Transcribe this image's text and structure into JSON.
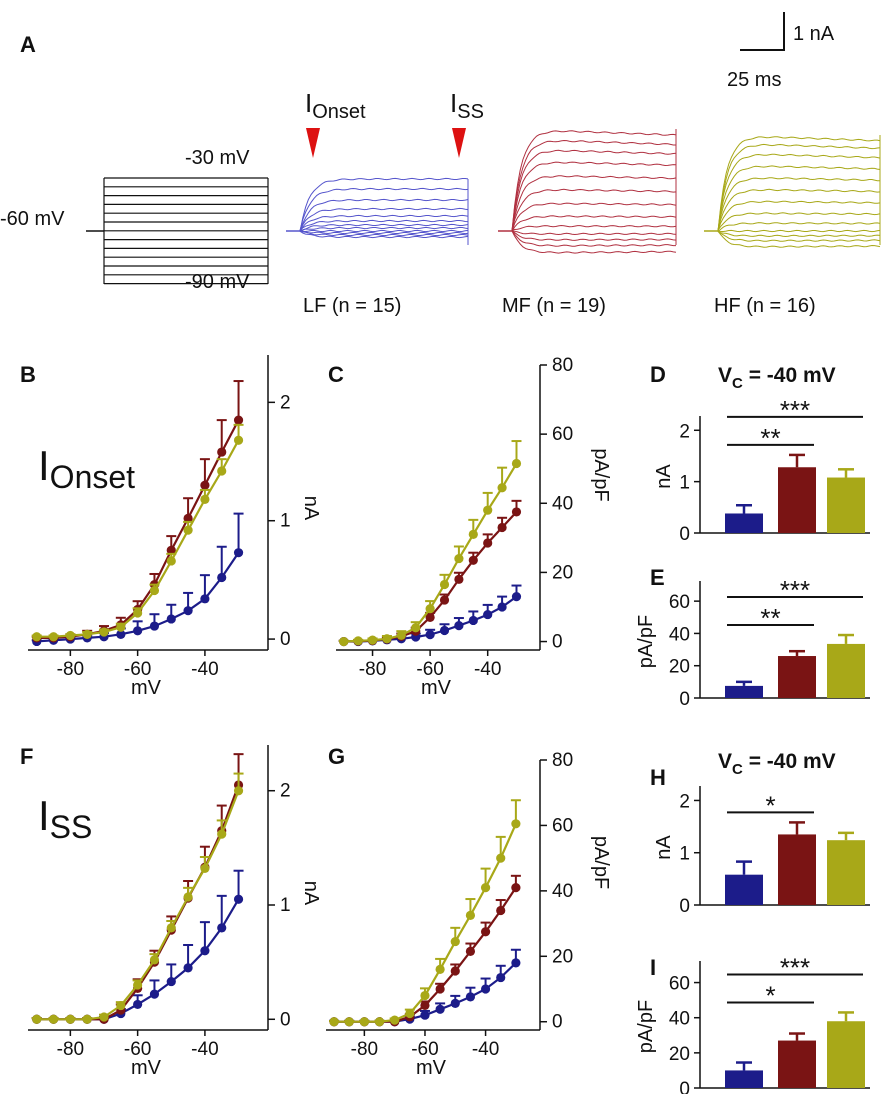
{
  "colors": {
    "LF": "#1c1c8a",
    "MF": "#7a1414",
    "HF": "#a8a818",
    "LF_trace": "#5555cc",
    "MF_trace": "#b03040",
    "arrow": "#dd1111",
    "black": "#111111"
  },
  "panelA": {
    "label": "A",
    "scalebar_current": "1 nA",
    "scalebar_time": "25 ms",
    "volt_hold": "-60 mV",
    "volt_top": "-30 mV",
    "volt_bottom": "-90 mV",
    "onset_base": "I",
    "onset_sub": "Onset",
    "ss_base": "I",
    "ss_sub": "SS",
    "groups": [
      "LF (n = 15)",
      "MF (n = 19)",
      "HF (n = 16)"
    ]
  },
  "text": {
    "B": "B",
    "C": "C",
    "D": "D",
    "E": "E",
    "F": "F",
    "G": "G",
    "H": "H",
    "I": "I",
    "Ionset_base": "I",
    "Ionset_sub": "Onset",
    "Iss_base": "I",
    "Iss_sub": "SS",
    "vc_base": "V",
    "vc_sub": "C",
    "vc_value": " = -40 mV",
    "xlabel": "mV",
    "ylabel_nA": "nA",
    "ylabel_pApF": "pA/pF"
  },
  "chart_data": [
    {
      "panel": "B",
      "type": "line",
      "title": "IOnset",
      "xlabel": "mV",
      "ylabel": "nA",
      "xlim": [
        -92,
        -26
      ],
      "ylim": [
        -0.05,
        2.4
      ],
      "x": [
        -90,
        -85,
        -80,
        -75,
        -70,
        -65,
        -60,
        -55,
        -50,
        -45,
        -40,
        -35,
        -30
      ],
      "xticks": [
        -80,
        -60,
        -40
      ],
      "yticks": [
        0,
        1,
        2
      ],
      "series": [
        {
          "name": "LF",
          "values": [
            -0.02,
            -0.01,
            0,
            0.01,
            0.02,
            0.04,
            0.07,
            0.11,
            0.17,
            0.24,
            0.34,
            0.52,
            0.73
          ],
          "err": [
            0.01,
            0.01,
            0.01,
            0.02,
            0.03,
            0.05,
            0.08,
            0.1,
            0.12,
            0.15,
            0.2,
            0.26,
            0.33
          ]
        },
        {
          "name": "MF",
          "values": [
            0.01,
            0.01,
            0.02,
            0.04,
            0.07,
            0.12,
            0.25,
            0.46,
            0.75,
            1.02,
            1.3,
            1.58,
            1.85
          ],
          "err": [
            0.01,
            0.01,
            0.02,
            0.03,
            0.04,
            0.06,
            0.07,
            0.09,
            0.12,
            0.17,
            0.22,
            0.27,
            0.33
          ]
        },
        {
          "name": "HF",
          "values": [
            0.02,
            0.02,
            0.03,
            0.04,
            0.06,
            0.1,
            0.22,
            0.41,
            0.66,
            0.92,
            1.18,
            1.42,
            1.68
          ],
          "err": [
            0.01,
            0.01,
            0.01,
            0.02,
            0.02,
            0.03,
            0.04,
            0.05,
            0.06,
            0.07,
            0.08,
            0.1,
            0.13
          ]
        }
      ]
    },
    {
      "panel": "C",
      "type": "line",
      "xlabel": "mV",
      "ylabel": "pA/pF",
      "xlim": [
        -92,
        -26
      ],
      "ylim": [
        -1,
        80
      ],
      "x": [
        -90,
        -85,
        -80,
        -75,
        -70,
        -65,
        -60,
        -55,
        -50,
        -45,
        -40,
        -35,
        -30
      ],
      "xticks": [
        -80,
        -60,
        -40
      ],
      "yticks": [
        0,
        20,
        40,
        60,
        80
      ],
      "series": [
        {
          "name": "LF",
          "values": [
            0,
            0,
            0.2,
            0.5,
            0.8,
            1.3,
            2,
            3.2,
            4.6,
            6.1,
            7.8,
            10,
            13
          ],
          "err": [
            0.2,
            0.2,
            0.3,
            0.5,
            0.8,
            1,
            1.4,
            1.8,
            2.2,
            2.6,
            2.8,
            3,
            3.2
          ]
        },
        {
          "name": "MF",
          "values": [
            0,
            0.1,
            0.3,
            0.7,
            1.5,
            3,
            7,
            12,
            18,
            23.5,
            28.5,
            33,
            37.5
          ],
          "err": [
            0.2,
            0.3,
            0.4,
            0.6,
            0.8,
            1,
            1.3,
            1.6,
            1.9,
            2.2,
            2.5,
            2.8,
            3.2
          ]
        },
        {
          "name": "HF",
          "values": [
            0,
            0.2,
            0.4,
            0.8,
            1.8,
            4,
            9.5,
            16.5,
            24,
            31,
            38,
            44.5,
            51.5
          ],
          "err": [
            0.2,
            0.3,
            0.5,
            0.8,
            1.2,
            1.6,
            2.2,
            2.8,
            3.5,
            4.2,
            5,
            5.8,
            6.5
          ]
        }
      ]
    },
    {
      "panel": "D",
      "type": "bar",
      "title": "VC = -40 mV",
      "ylabel": "nA",
      "categories": [
        "LF",
        "MF",
        "HF"
      ],
      "values": [
        0.38,
        1.28,
        1.08
      ],
      "err": [
        0.16,
        0.24,
        0.16
      ],
      "ylim": [
        0,
        2.2
      ],
      "yticks": [
        0,
        1,
        2
      ],
      "significance": [
        {
          "from": "LF",
          "to": "MF",
          "label": "**"
        },
        {
          "from": "LF",
          "to": "HF",
          "label": "***"
        }
      ]
    },
    {
      "panel": "E",
      "type": "bar",
      "ylabel": "pA/pF",
      "categories": [
        "LF",
        "MF",
        "HF"
      ],
      "values": [
        7.5,
        26,
        33.5
      ],
      "err": [
        2.5,
        3,
        5.5
      ],
      "ylim": [
        0,
        70
      ],
      "yticks": [
        0,
        20,
        40,
        60
      ],
      "significance": [
        {
          "from": "LF",
          "to": "MF",
          "label": "**"
        },
        {
          "from": "LF",
          "to": "HF",
          "label": "***"
        }
      ]
    },
    {
      "panel": "F",
      "type": "line",
      "title": "ISS",
      "xlabel": "mV",
      "ylabel": "nA",
      "xlim": [
        -92,
        -26
      ],
      "ylim": [
        -0.05,
        2.4
      ],
      "x": [
        -90,
        -85,
        -80,
        -75,
        -70,
        -65,
        -60,
        -55,
        -50,
        -45,
        -40,
        -35,
        -30
      ],
      "xticks": [
        -80,
        -60,
        -40
      ],
      "yticks": [
        0,
        1,
        2
      ],
      "series": [
        {
          "name": "LF",
          "values": [
            0,
            0,
            0,
            0,
            0,
            0.05,
            0.13,
            0.22,
            0.33,
            0.45,
            0.6,
            0.8,
            1.05
          ],
          "err": [
            0.01,
            0.01,
            0.01,
            0.01,
            0.02,
            0.04,
            0.08,
            0.12,
            0.15,
            0.2,
            0.25,
            0.28,
            0.25
          ]
        },
        {
          "name": "MF",
          "values": [
            0,
            0,
            0,
            0,
            0,
            0.08,
            0.27,
            0.5,
            0.78,
            1.06,
            1.33,
            1.65,
            2.05
          ],
          "err": [
            0.01,
            0.01,
            0.01,
            0.01,
            0.01,
            0.05,
            0.08,
            0.1,
            0.12,
            0.15,
            0.18,
            0.22,
            0.27
          ]
        },
        {
          "name": "HF",
          "values": [
            0,
            0,
            0,
            0,
            0.02,
            0.12,
            0.3,
            0.52,
            0.8,
            1.07,
            1.32,
            1.62,
            2.0
          ],
          "err": [
            0.01,
            0.01,
            0.01,
            0.01,
            0.02,
            0.03,
            0.04,
            0.05,
            0.06,
            0.08,
            0.1,
            0.12,
            0.15
          ]
        }
      ]
    },
    {
      "panel": "G",
      "type": "line",
      "xlabel": "mV",
      "ylabel": "pA/pF",
      "xlim": [
        -92,
        -26
      ],
      "ylim": [
        -1,
        80
      ],
      "x": [
        -90,
        -85,
        -80,
        -75,
        -70,
        -65,
        -60,
        -55,
        -50,
        -45,
        -40,
        -35,
        -30
      ],
      "xticks": [
        -80,
        -60,
        -40
      ],
      "yticks": [
        0,
        20,
        40,
        60,
        80
      ],
      "series": [
        {
          "name": "LF",
          "values": [
            0,
            0,
            0,
            0,
            0,
            0.8,
            2,
            3.8,
            5.6,
            7.6,
            10,
            13.5,
            18
          ],
          "err": [
            0.3,
            0.3,
            0.3,
            0.3,
            0.4,
            0.8,
            1.3,
            1.8,
            2.3,
            2.8,
            3.2,
            3.6,
            4
          ]
        },
        {
          "name": "MF",
          "values": [
            0,
            0,
            0,
            0,
            0,
            1.5,
            5,
            10,
            15.5,
            21.5,
            27.5,
            34,
            41
          ],
          "err": [
            0.2,
            0.2,
            0.2,
            0.2,
            0.3,
            0.8,
            1.2,
            1.6,
            2,
            2.4,
            2.8,
            3.2,
            3.6
          ]
        },
        {
          "name": "HF",
          "values": [
            0,
            0,
            0,
            0,
            0.5,
            2.5,
            8,
            16,
            24.5,
            32.5,
            41,
            50,
            60.5
          ],
          "err": [
            0.2,
            0.2,
            0.2,
            0.3,
            0.5,
            1.2,
            2.2,
            3.2,
            4.2,
            5,
            5.8,
            6.5,
            7.2
          ]
        }
      ]
    },
    {
      "panel": "H",
      "type": "bar",
      "title": "VC = -40 mV",
      "ylabel": "nA",
      "categories": [
        "LF",
        "MF",
        "HF"
      ],
      "values": [
        0.58,
        1.35,
        1.24
      ],
      "err": [
        0.25,
        0.23,
        0.14
      ],
      "ylim": [
        0,
        2.2
      ],
      "yticks": [
        0,
        1,
        2
      ],
      "significance": [
        {
          "from": "LF",
          "to": "MF",
          "label": "*"
        }
      ]
    },
    {
      "panel": "I",
      "type": "bar",
      "ylabel": "pA/pF",
      "categories": [
        "LF",
        "MF",
        "HF"
      ],
      "values": [
        10,
        27,
        38
      ],
      "err": [
        4.5,
        4,
        5
      ],
      "ylim": [
        0,
        70
      ],
      "yticks": [
        0,
        20,
        40,
        60
      ],
      "significance": [
        {
          "from": "LF",
          "to": "MF",
          "label": "*"
        },
        {
          "from": "LF",
          "to": "HF",
          "label": "***"
        }
      ]
    }
  ]
}
